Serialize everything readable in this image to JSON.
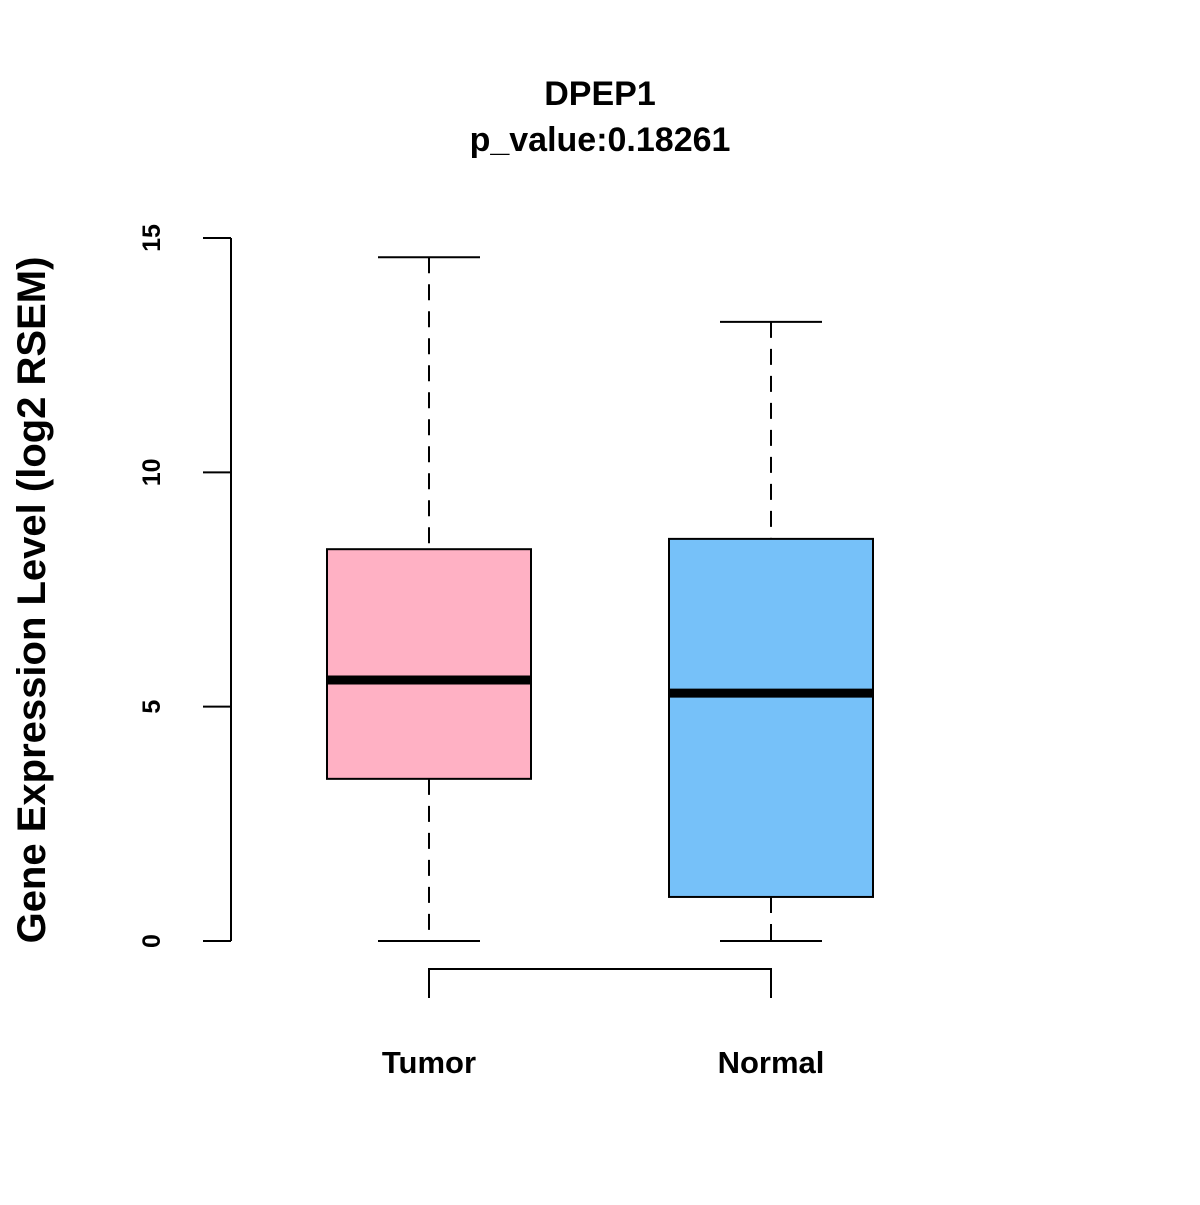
{
  "chart_data": {
    "type": "box",
    "title": "DPEP1",
    "subtitle": "p_value:0.18261",
    "xlabel": "",
    "ylabel": "Gene Expression Level (log2 RSEM)",
    "ylim": [
      0,
      15
    ],
    "yticks": [
      0,
      5,
      10,
      15
    ],
    "ytick_labels": [
      "0",
      "5",
      "10",
      "15"
    ],
    "grid": false,
    "categories": [
      "Tumor",
      "Normal"
    ],
    "boxes": [
      {
        "name": "Tumor",
        "whisker_low": 0,
        "q1": 3.46,
        "median": 5.57,
        "q3": 8.36,
        "whisker_high": 14.59,
        "color": "#FFB1C4"
      },
      {
        "name": "Normal",
        "whisker_low": 0,
        "q1": 0.94,
        "median": 5.29,
        "q3": 8.58,
        "whisker_high": 13.21,
        "color": "#76C1F9"
      }
    ],
    "comparison_bracket": [
      "Tumor",
      "Normal"
    ]
  }
}
